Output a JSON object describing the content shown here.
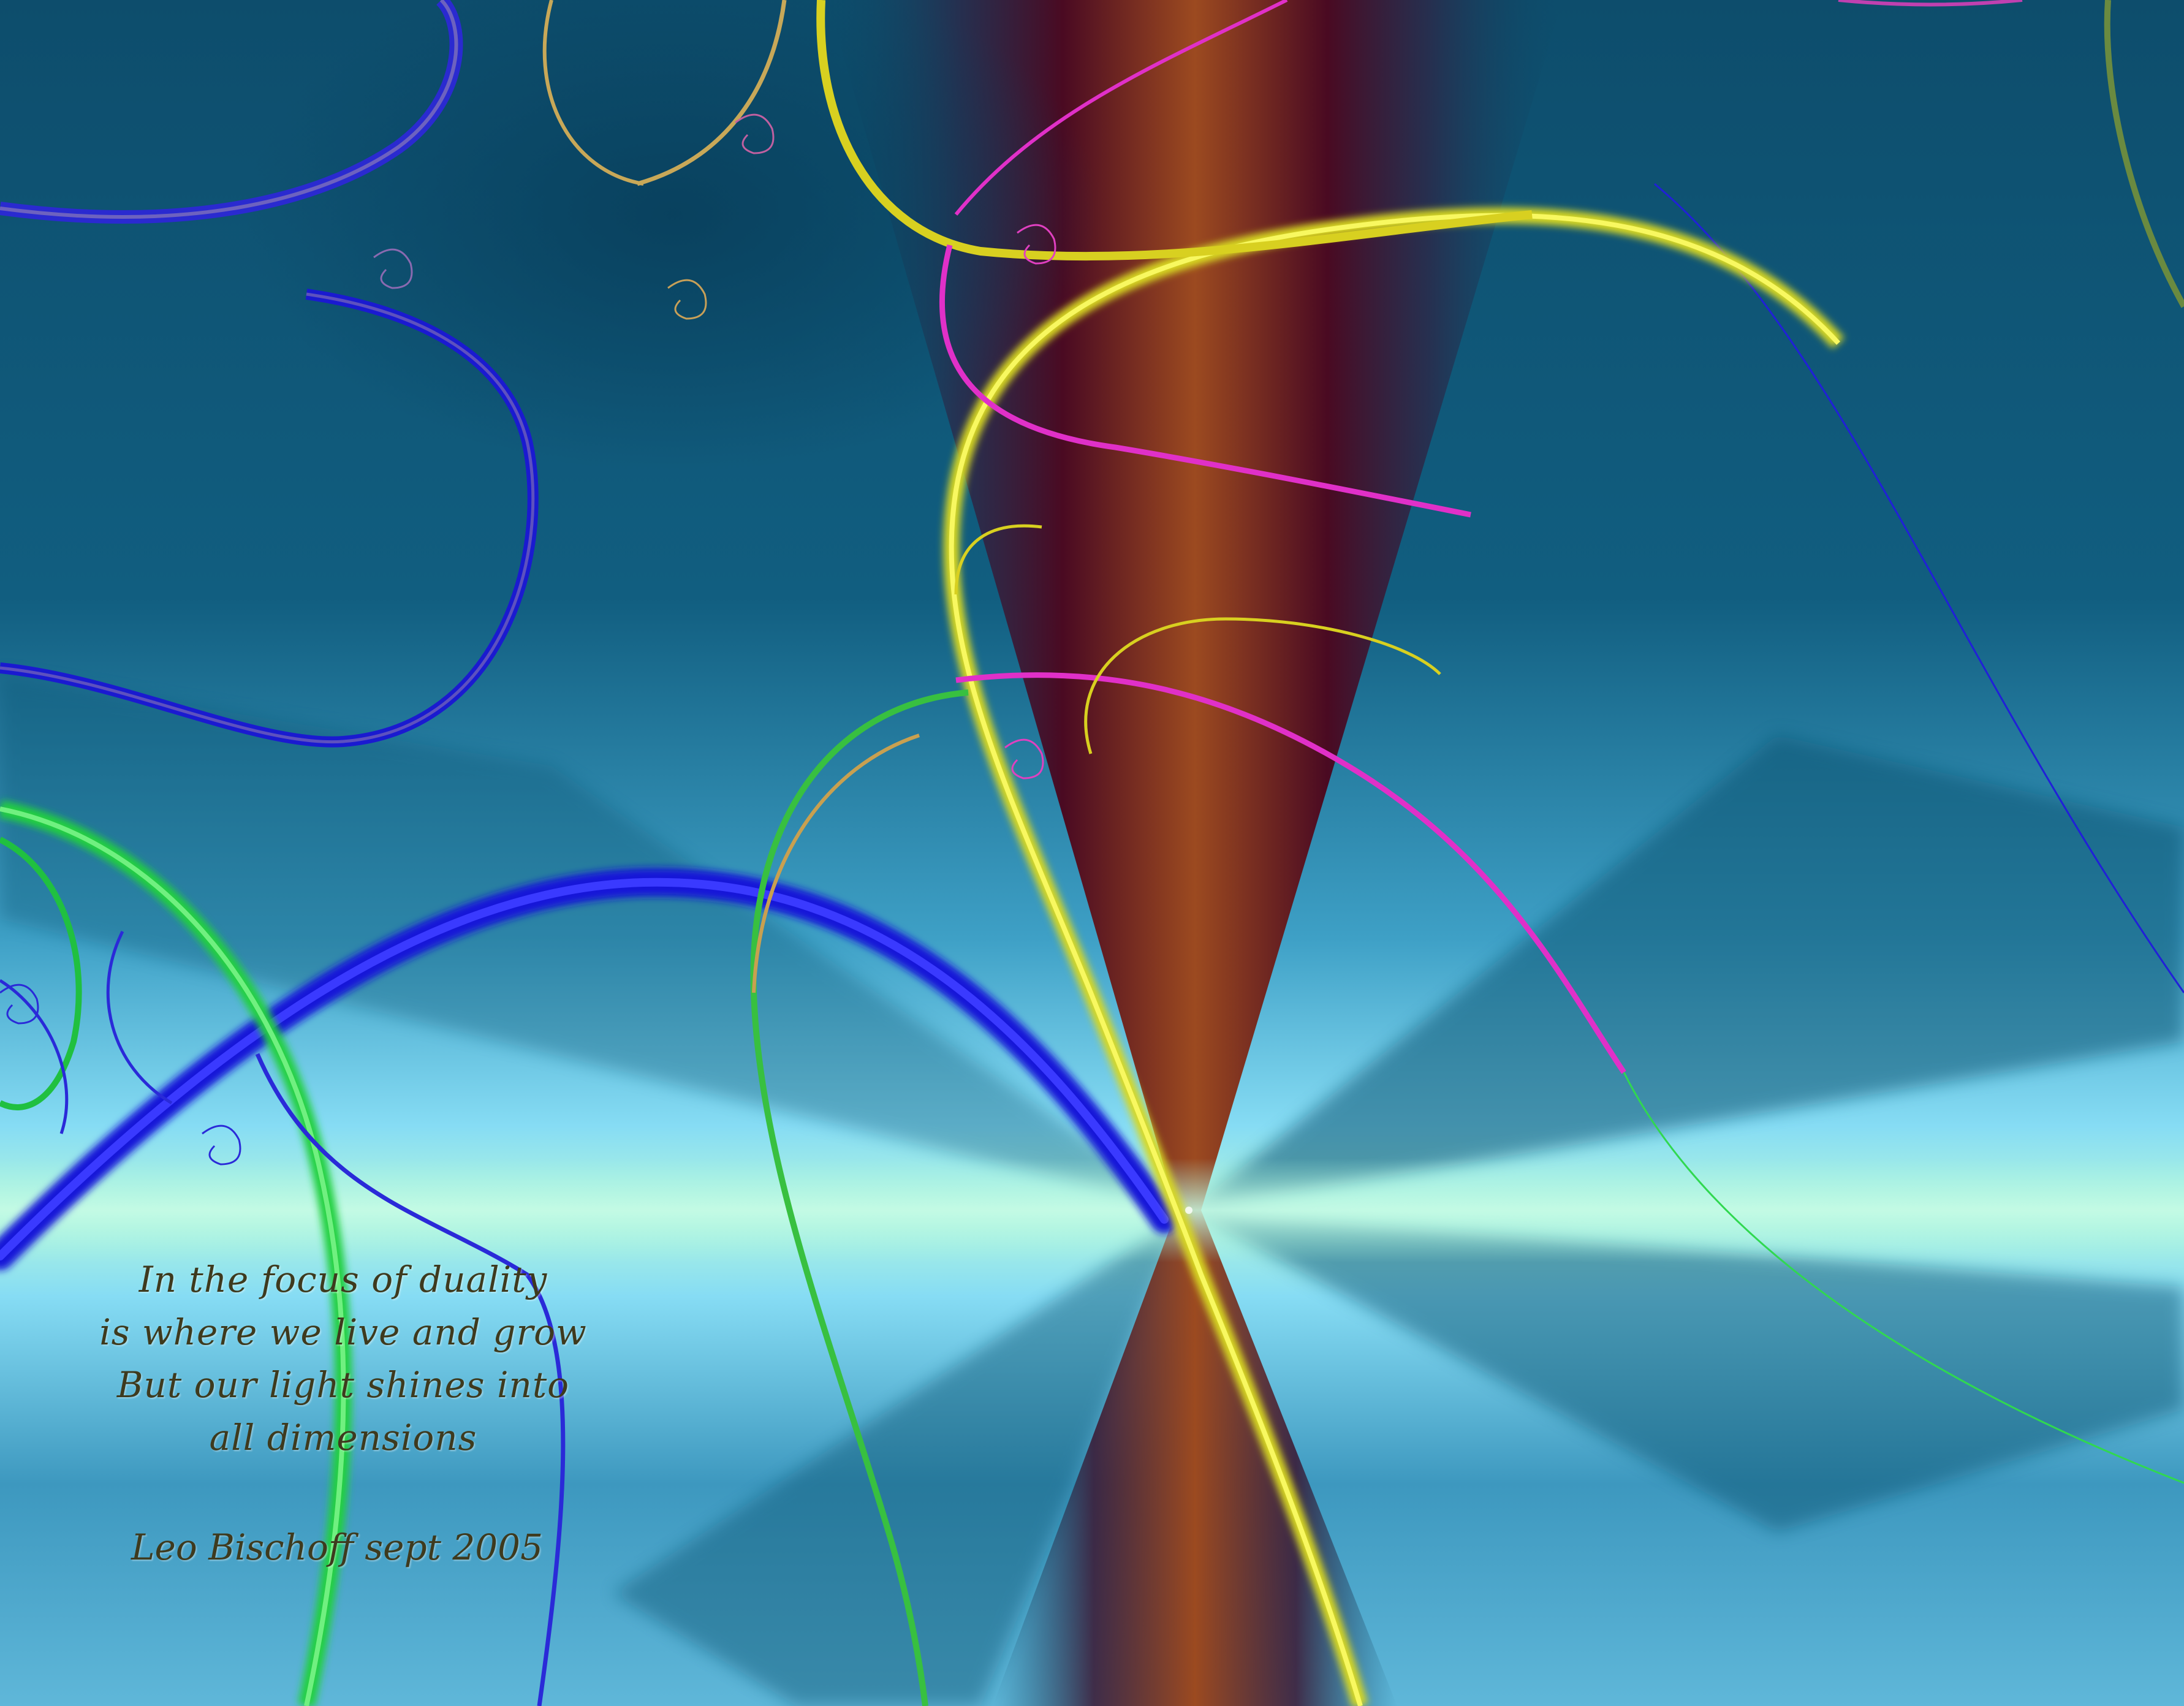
{
  "poem": {
    "lines": [
      "In the focus of duality",
      "is where we live and grow",
      "But our light shines into",
      "all dimensions"
    ],
    "signature": "Leo Bischoff sept 2005"
  },
  "colors": {
    "background_teal": "#0b5a78",
    "background_light": "#8ee6f8",
    "horizon_glow": "#a8f5df",
    "vertical_beam_core": "#9b4a1e",
    "vertical_beam_dark": "#4a0a1e",
    "ribbon_blue": "#1a1ee0",
    "ribbon_yellow": "#e8e820",
    "ribbon_green": "#22d63a",
    "ribbon_magenta": "#e030c8",
    "ribbon_gold": "#c8a050",
    "text_color": "#3e3a1e"
  }
}
